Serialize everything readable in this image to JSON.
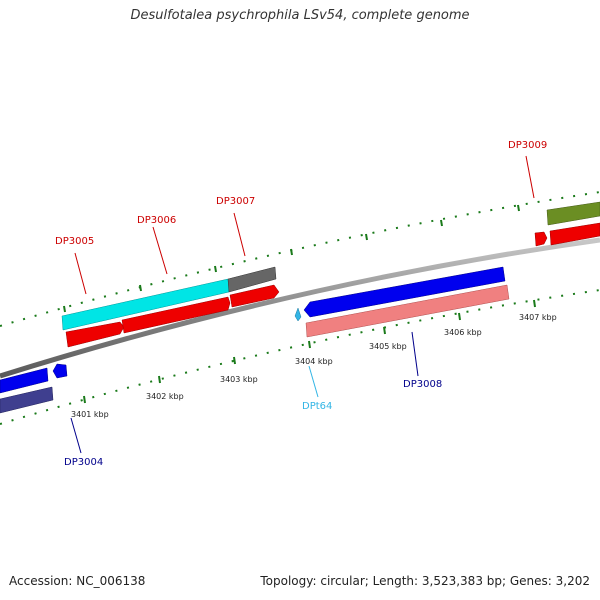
{
  "title": "Desulfotalea psychrophila LSv54, complete genome",
  "footer": {
    "accession": "Accession: NC_006138",
    "summary": "Topology: circular; Length: 3,523,383 bp; Genes: 3,202"
  },
  "ticks": [
    {
      "label": "3401 kbp"
    },
    {
      "label": "3402 kbp"
    },
    {
      "label": "3403 kbp"
    },
    {
      "label": "3404 kbp"
    },
    {
      "label": "3405 kbp"
    },
    {
      "label": "3406 kbp"
    },
    {
      "label": "3407 kbp"
    }
  ],
  "genes": [
    {
      "label": "DP3004",
      "color": "#00008b"
    },
    {
      "label": "DP3005",
      "color": "#cc0000"
    },
    {
      "label": "DP3006",
      "color": "#cc0000"
    },
    {
      "label": "DP3007",
      "color": "#cc0000"
    },
    {
      "label": "DPt64",
      "color": "#33b5e5"
    },
    {
      "label": "DP3008",
      "color": "#00008b"
    },
    {
      "label": "DP3009",
      "color": "#cc0000"
    }
  ],
  "colors": {
    "backbone": "#8a8a8a",
    "tick_mark": "#1a7a1a",
    "forward_red": "#ee0000",
    "cyan": "#00e5e5",
    "gray_feature": "#666666",
    "blue": "#0000ee",
    "slate": "#3f3f8f",
    "salmon": "#f08080",
    "olive": "#6b8e23"
  }
}
